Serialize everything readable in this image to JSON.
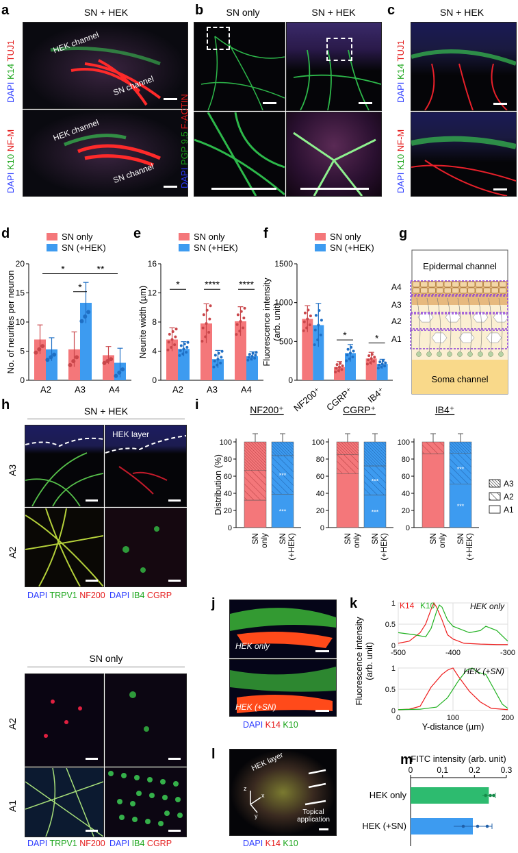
{
  "panels": {
    "a": {
      "label": "a",
      "title": "SN + HEK",
      "top_stain": [
        "DAPI",
        "K14",
        "TUJ1"
      ],
      "bottom_stain": [
        "DAPI",
        "K10",
        "NF-M"
      ],
      "hek_channel": "HEK channel",
      "sn_channel": "SN channel"
    },
    "b": {
      "label": "b",
      "title_left": "SN only",
      "title_right": "SN + HEK",
      "stain": [
        "DAPI",
        "PGP 9.5",
        "F-ACTIN"
      ]
    },
    "c": {
      "label": "c",
      "title": "SN + HEK",
      "top_stain": [
        "DAPI",
        "K14",
        "TUJ1"
      ],
      "bottom_stain": [
        "DAPI",
        "K10",
        "NF-M"
      ]
    },
    "g": {
      "label": "g",
      "epidermal": "Epidermal channel",
      "soma": "Soma channel",
      "levels": [
        "A4",
        "A3",
        "A2",
        "A1"
      ]
    },
    "h": {
      "label": "h",
      "title_top": "SN + HEK",
      "title_bottom": "SN only",
      "hek_layer": "HEK layer",
      "rows_top": [
        "A3",
        "A2"
      ],
      "rows_bottom": [
        "A2",
        "A1"
      ],
      "cap_left": [
        "DAPI",
        "TRPV1",
        "NF200"
      ],
      "cap_right": [
        "DAPI",
        "IB4",
        "CGRP"
      ]
    },
    "j": {
      "label": "j",
      "top": "HEK only",
      "bottom": "HEK (+SN)",
      "stain": [
        "DAPI",
        "K14",
        "K10"
      ]
    },
    "l": {
      "label": "l",
      "hek_layer": "HEK layer",
      "topical": "Topical application",
      "stain": [
        "DAPI",
        "K14",
        "K10"
      ],
      "axes": [
        "z",
        "x",
        "y"
      ]
    }
  },
  "colors": {
    "sn_only": "#f4777a",
    "sn_hek": "#3d9bf0",
    "green": "#2dbb6f",
    "dapi": "#2b3bff",
    "k14": "#e41a1a",
    "k10": "#1aa51a"
  },
  "chart_data": [
    {
      "panel": "d",
      "type": "bar",
      "ylabel": "No. of neurites per neuron",
      "categories": [
        "A2",
        "A3",
        "A4"
      ],
      "ylim": [
        0,
        20
      ],
      "yticks": [
        0,
        5,
        10,
        15,
        20
      ],
      "legend": [
        "SN only",
        "SN (+HEK)"
      ],
      "series": [
        {
          "name": "SN only",
          "values": [
            7.0,
            5.3,
            4.3
          ],
          "errors": [
            2.5,
            3.0,
            1.5
          ]
        },
        {
          "name": "SN (+HEK)",
          "values": [
            5.3,
            13.3,
            3.0
          ],
          "errors": [
            2.0,
            3.5,
            2.5
          ]
        }
      ],
      "significance": [
        "*",
        "**",
        "*"
      ]
    },
    {
      "panel": "e",
      "type": "bar",
      "ylabel": "Neurite width (µm)",
      "categories": [
        "A2",
        "A3",
        "A4"
      ],
      "ylim": [
        0,
        16
      ],
      "yticks": [
        0,
        4,
        8,
        12,
        16
      ],
      "legend": [
        "SN only",
        "SN (+HEK)"
      ],
      "series": [
        {
          "name": "SN only",
          "values": [
            5.6,
            7.8,
            8.1
          ],
          "errors": [
            1.6,
            2.7,
            2.0
          ]
        },
        {
          "name": "SN (+HEK)",
          "values": [
            4.3,
            2.9,
            3.3
          ],
          "errors": [
            1.0,
            1.2,
            0.6
          ]
        }
      ],
      "significance": [
        "*",
        "****",
        "****"
      ]
    },
    {
      "panel": "f",
      "type": "bar",
      "ylabel": "Fluorescence intensity (arb. unit)",
      "categories": [
        "NF200⁺",
        "CGRP⁺",
        "IB4⁺"
      ],
      "ylim": [
        0,
        1500
      ],
      "yticks": [
        0,
        500,
        1000,
        1500
      ],
      "legend": [
        "SN only",
        "SN (+HEK)"
      ],
      "series": [
        {
          "name": "SN only",
          "values": [
            790,
            170,
            280
          ],
          "errors": [
            170,
            70,
            80
          ]
        },
        {
          "name": "SN (+HEK)",
          "values": [
            710,
            350,
            210
          ],
          "errors": [
            280,
            110,
            60
          ]
        }
      ],
      "significance": [
        "*",
        "*"
      ]
    },
    {
      "panel": "i",
      "type": "bar",
      "ylabel": "Distribution (%)",
      "groups": [
        "NF200⁺",
        "CGRP⁺",
        "IB4⁺"
      ],
      "categories": [
        "SN only",
        "SN (+HEK)"
      ],
      "ylim": [
        0,
        100
      ],
      "yticks": [
        0,
        20,
        40,
        60,
        80,
        100
      ],
      "legend": [
        "A3",
        "A2",
        "A1"
      ],
      "stacks": [
        {
          "group": "NF200⁺",
          "sn_only": {
            "A1": 32,
            "A2": 35,
            "A3": 33
          },
          "sn_hek": {
            "A1": 39,
            "A2": 45,
            "A3": 16
          }
        },
        {
          "group": "CGRP⁺",
          "sn_only": {
            "A1": 63,
            "A2": 22,
            "A3": 15
          },
          "sn_hek": {
            "A1": 38,
            "A2": 34,
            "A3": 28
          }
        },
        {
          "group": "IB4⁺",
          "sn_only": {
            "A1": 86,
            "A2": 14,
            "A3": 0
          },
          "sn_hek": {
            "A1": 51,
            "A2": 36,
            "A3": 13
          }
        }
      ],
      "stars": [
        "***",
        "***",
        "***",
        "***",
        "***",
        "***"
      ]
    },
    {
      "panel": "k",
      "type": "line",
      "ylabel": "Fluorescence intensity (arb. unit)",
      "xlabel": "Y-distance (µm)",
      "subplots": [
        {
          "title": "HEK only",
          "xlim": [
            -500,
            -300
          ],
          "xticks": [
            -500,
            -400,
            -300
          ],
          "ylim": [
            0,
            1
          ],
          "yticks": [
            0,
            0.5,
            1
          ],
          "series": [
            {
              "name": "K14",
              "x": [
                -500,
                -480,
                -460,
                -450,
                -440,
                -435,
                -430,
                -420,
                -410,
                -400,
                -380,
                -350,
                -320,
                -300
              ],
              "y": [
                0.05,
                0.1,
                0.3,
                0.5,
                0.85,
                1.0,
                0.9,
                0.6,
                0.25,
                0.15,
                0.05,
                0.03,
                0.02,
                0.02
              ]
            },
            {
              "name": "K10",
              "x": [
                -500,
                -470,
                -450,
                -440,
                -430,
                -425,
                -420,
                -410,
                -400,
                -390,
                -370,
                -350,
                -340,
                -320,
                -300
              ],
              "y": [
                0.3,
                0.25,
                0.2,
                0.4,
                0.8,
                0.95,
                0.9,
                0.6,
                0.45,
                0.4,
                0.3,
                0.35,
                0.45,
                0.35,
                0.1
              ]
            }
          ]
        },
        {
          "title": "HEK (+SN)",
          "xlim": [
            0,
            200
          ],
          "xticks": [
            0,
            100,
            200
          ],
          "ylim": [
            0,
            1
          ],
          "yticks": [
            0,
            0.5,
            1
          ],
          "series": [
            {
              "name": "K14",
              "x": [
                0,
                20,
                40,
                60,
                80,
                90,
                100,
                110,
                130,
                150,
                170,
                200
              ],
              "y": [
                0.02,
                0.03,
                0.1,
                0.55,
                0.85,
                0.95,
                1.0,
                0.8,
                0.45,
                0.2,
                0.05,
                0.02
              ]
            },
            {
              "name": "K10",
              "x": [
                0,
                40,
                70,
                90,
                110,
                125,
                135,
                145,
                160,
                175,
                190,
                200
              ],
              "y": [
                0.02,
                0.03,
                0.08,
                0.3,
                0.7,
                0.95,
                1.0,
                0.9,
                0.85,
                0.5,
                0.15,
                0.05
              ]
            }
          ]
        }
      ]
    },
    {
      "panel": "m",
      "type": "bar",
      "orientation": "horizontal",
      "xlabel": "FITC intensity (arb. unit)",
      "categories": [
        "HEK only",
        "HEK (+SN)"
      ],
      "xlim": [
        0,
        0.3
      ],
      "xticks": [
        0,
        0.1,
        0.2,
        0.3
      ],
      "values": [
        0.245,
        0.195
      ],
      "errors": [
        0.02,
        0.06
      ]
    }
  ]
}
